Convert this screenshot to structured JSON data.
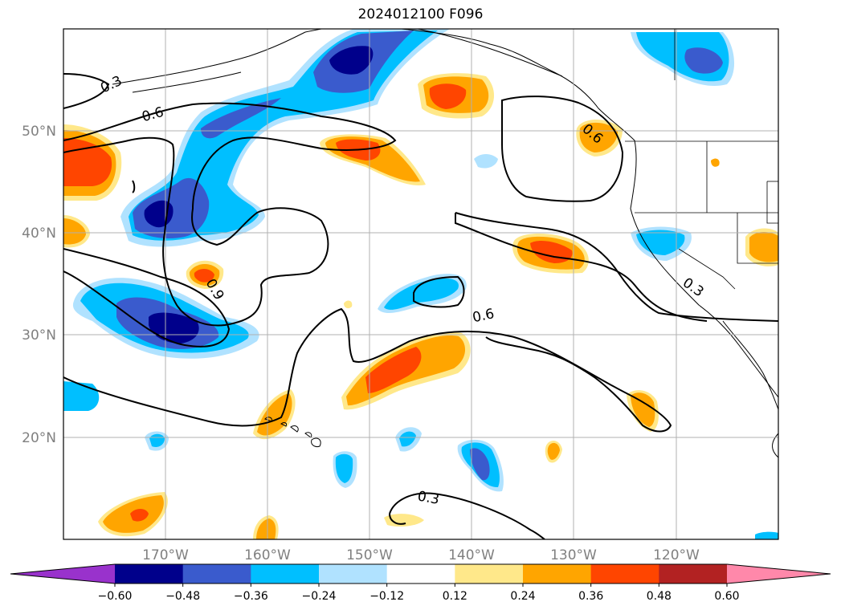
{
  "title": "2024012100 F096",
  "map": {
    "lon_ticks": [
      "170°W",
      "160°W",
      "150°W",
      "140°W",
      "130°W",
      "120°W"
    ],
    "lat_ticks": [
      "50°N",
      "40°N",
      "30°N",
      "20°N"
    ],
    "grid": true,
    "tick_label_color": "#808080",
    "contour_labels": [
      "0.3",
      "0.6",
      "0.6",
      "0.9",
      "0.6",
      "0.3",
      "0.3"
    ]
  },
  "colorbar": {
    "colors": [
      "#9932cc",
      "#00008b",
      "#3a5bcd",
      "#00bfff",
      "#b0e2ff",
      "#ffffff",
      "#ffe88a",
      "#ffa500",
      "#ff4500",
      "#b22222",
      "#ff88aa"
    ],
    "tick_labels": [
      "−0.60",
      "−0.48",
      "−0.36",
      "−0.24",
      "−0.12",
      "0.12",
      "0.24",
      "0.36",
      "0.48",
      "0.60"
    ],
    "extend": "both"
  }
}
